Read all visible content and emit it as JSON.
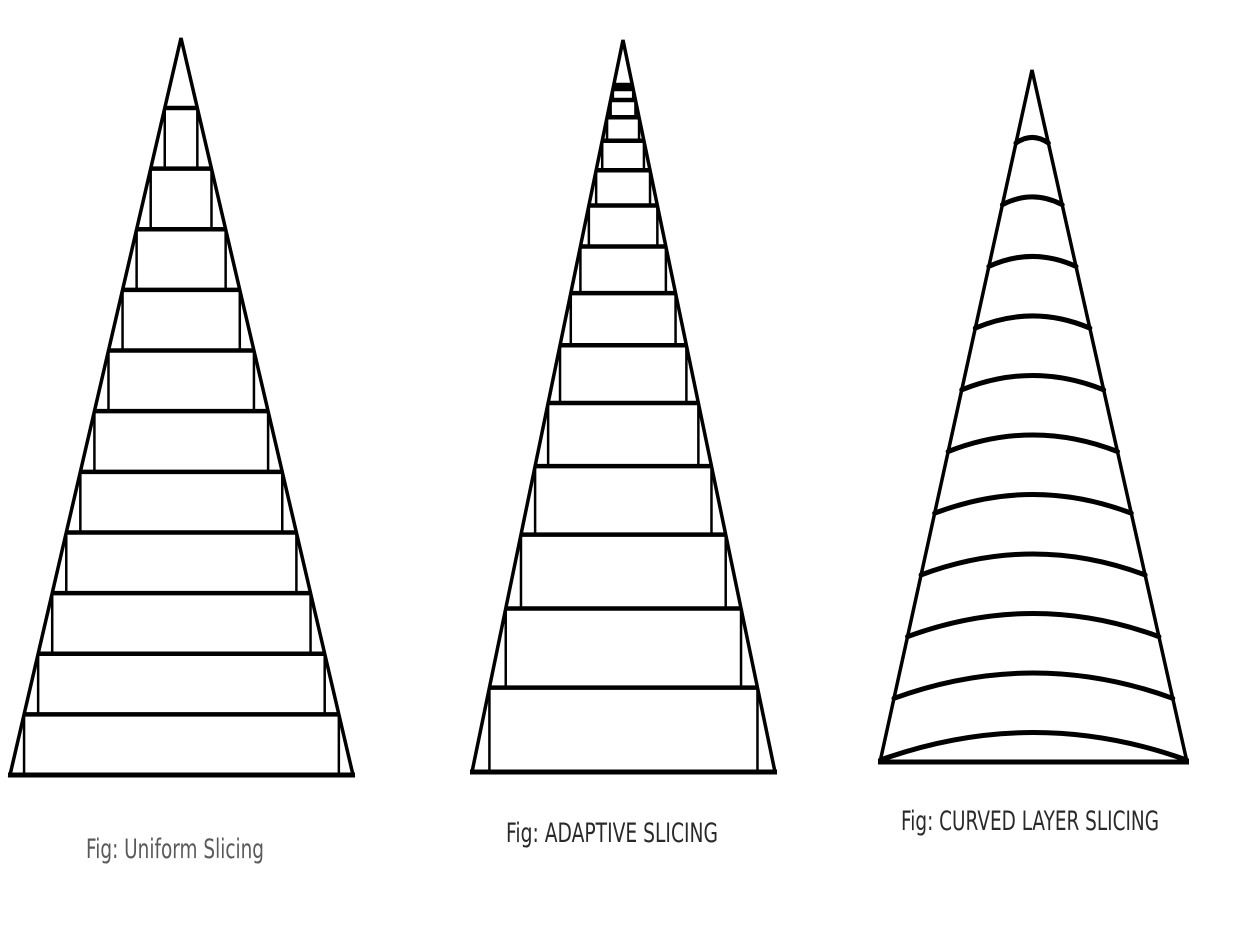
{
  "figures": [
    {
      "caption": "Fig: Uniform Slicing",
      "layers": 11,
      "slicing": "uniform"
    },
    {
      "caption": "Fig: ADAPTIVE SLICING",
      "slicing": "adaptive",
      "layers": 15
    },
    {
      "caption": "Fig: CURVED LAYER SLICING",
      "slicing": "curved",
      "layers": 11
    }
  ]
}
